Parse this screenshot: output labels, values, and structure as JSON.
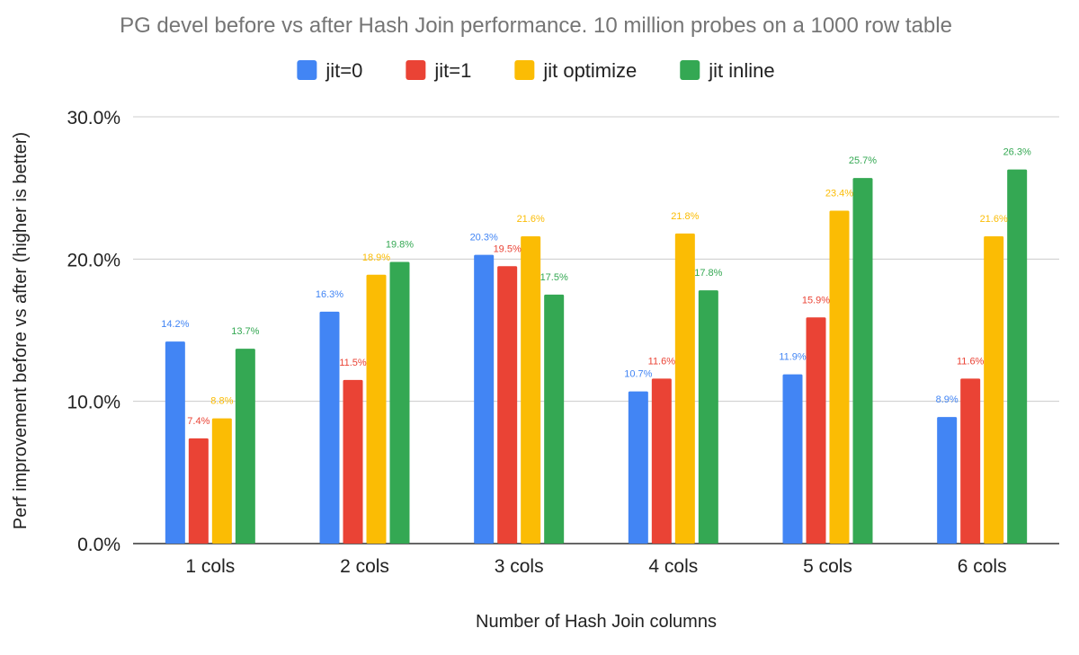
{
  "chart_data": {
    "type": "bar",
    "title": "PG devel before vs after Hash Join performance. 10 million probes on a 1000 row table",
    "xlabel": "Number of Hash Join columns",
    "ylabel": "Perf improvement before vs after (higher is better)",
    "categories": [
      "1 cols",
      "2 cols",
      "3 cols",
      "4 cols",
      "5 cols",
      "6 cols"
    ],
    "ylim": [
      0,
      30
    ],
    "yticks": [
      0,
      10,
      20,
      30
    ],
    "ytick_labels": [
      "0.0%",
      "10.0%",
      "20.0%",
      "30.0%"
    ],
    "grid": true,
    "legend_position": "top",
    "series": [
      {
        "name": "jit=0",
        "color": "#4285F4",
        "values": [
          14.2,
          16.3,
          20.3,
          10.7,
          11.9,
          8.9
        ],
        "labels": [
          "14.2%",
          "16.3%",
          "20.3%",
          "10.7%",
          "11.9%",
          "8.9%"
        ]
      },
      {
        "name": "jit=1",
        "color": "#EA4335",
        "values": [
          7.4,
          11.5,
          19.5,
          11.6,
          15.9,
          11.6
        ],
        "labels": [
          "7.4%",
          "11.5%",
          "19.5%",
          "11.6%",
          "15.9%",
          "11.6%"
        ]
      },
      {
        "name": "jit optimize",
        "color": "#FBBC04",
        "values": [
          8.8,
          18.9,
          21.6,
          21.8,
          23.4,
          21.6
        ],
        "labels": [
          "8.8%",
          "18.9%",
          "21.6%",
          "21.8%",
          "23.4%",
          "21.6%"
        ]
      },
      {
        "name": "jit inline",
        "color": "#34A853",
        "values": [
          13.7,
          19.8,
          17.5,
          17.8,
          25.7,
          26.3
        ],
        "labels": [
          "13.7%",
          "19.8%",
          "17.5%",
          "17.8%",
          "25.7%",
          "26.3%"
        ]
      }
    ]
  }
}
